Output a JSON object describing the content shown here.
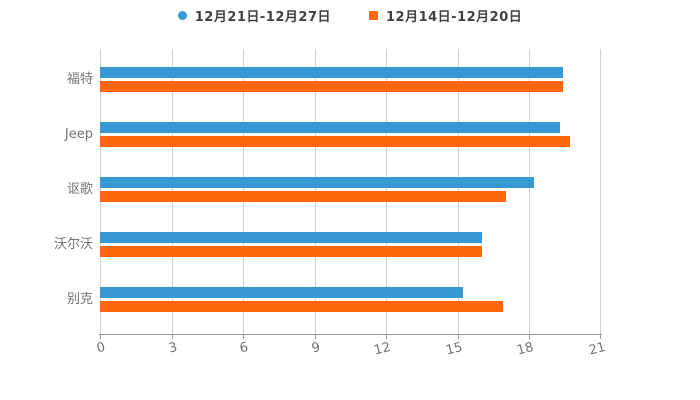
{
  "legend": {
    "items": [
      {
        "label": "12月21日-12月27日",
        "color": "#3898d3",
        "marker": "circle"
      },
      {
        "label": "12月14日-12月20日",
        "color": "#ff660d",
        "marker": "square"
      }
    ]
  },
  "chart_data": {
    "type": "bar",
    "orientation": "horizontal",
    "title": "",
    "xlabel": "",
    "ylabel": "",
    "categories": [
      "福特",
      "Jeep",
      "讴歌",
      "沃尔沃",
      "别克"
    ],
    "series": [
      {
        "name": "12月21日-12月27日",
        "color": "#3898d3",
        "values": [
          19.4,
          19.3,
          18.2,
          16.0,
          15.2
        ]
      },
      {
        "name": "12月14日-12月20日",
        "color": "#ff660d",
        "values": [
          19.4,
          19.7,
          17.0,
          16.0,
          16.9
        ]
      }
    ],
    "xlim": [
      0,
      21
    ],
    "x_ticks": [
      0,
      3,
      6,
      9,
      12,
      15,
      18,
      21
    ],
    "grid": true,
    "legend_position": "top"
  }
}
